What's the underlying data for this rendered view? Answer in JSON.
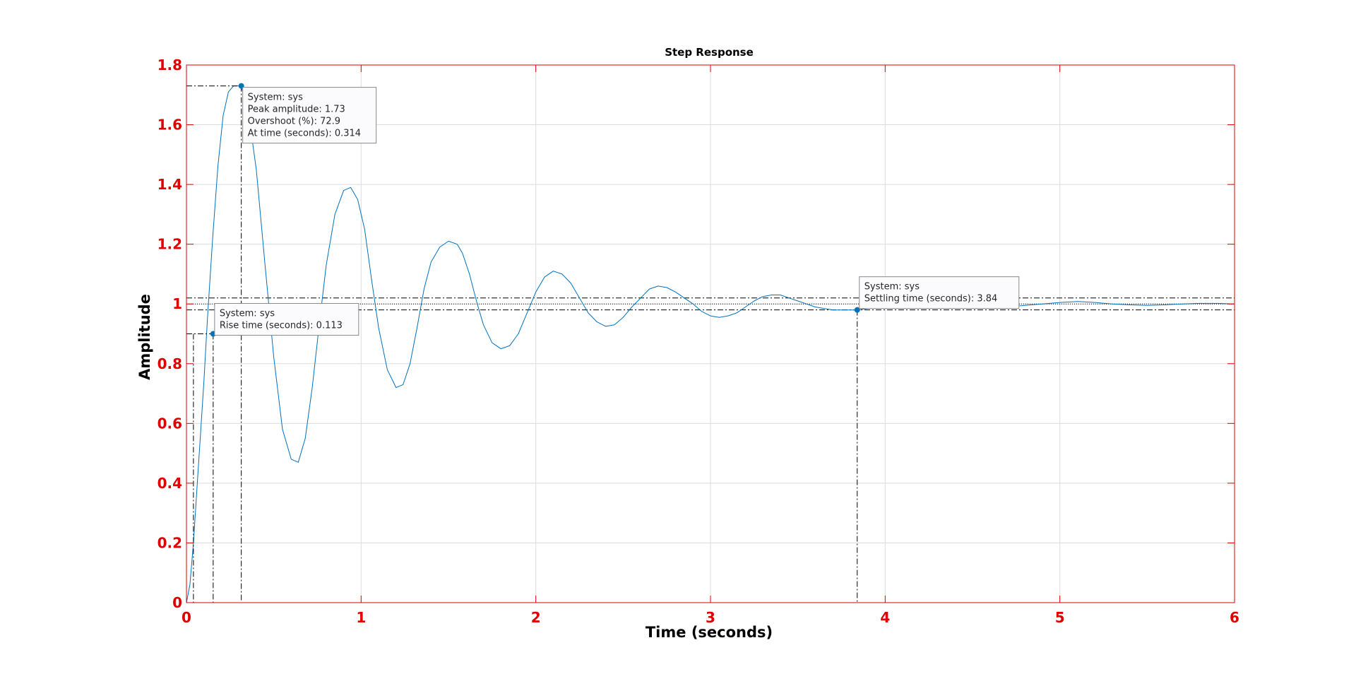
{
  "chart_data": {
    "type": "line",
    "title": "Step Response",
    "xlabel": "Time (seconds)",
    "ylabel": "Amplitude",
    "xlim": [
      0,
      6
    ],
    "ylim": [
      0,
      1.8
    ],
    "x_ticks": [
      "0",
      "1",
      "2",
      "3",
      "4",
      "5",
      "6"
    ],
    "y_ticks": [
      "0",
      "0.2",
      "0.4",
      "0.6",
      "0.8",
      "1",
      "1.2",
      "1.4",
      "1.6",
      "1.8"
    ],
    "grid": true,
    "colors": {
      "axes": "#e00000",
      "line": "#0072bd",
      "grid": "#dcdcdc",
      "guide": "#000000"
    },
    "series": [
      {
        "x": [
          0.0,
          0.02,
          0.04,
          0.06,
          0.08,
          0.1,
          0.12,
          0.15,
          0.18,
          0.21,
          0.24,
          0.27,
          0.314,
          0.36,
          0.4,
          0.45,
          0.5,
          0.55,
          0.6,
          0.64,
          0.68,
          0.72,
          0.76,
          0.8,
          0.85,
          0.9,
          0.94,
          0.98,
          1.02,
          1.06,
          1.1,
          1.15,
          1.2,
          1.24,
          1.28,
          1.32,
          1.36,
          1.4,
          1.45,
          1.5,
          1.55,
          1.58,
          1.62,
          1.66,
          1.7,
          1.75,
          1.8,
          1.85,
          1.9,
          1.95,
          2.0,
          2.05,
          2.1,
          2.15,
          2.2,
          2.25,
          2.3,
          2.35,
          2.4,
          2.45,
          2.5,
          2.55,
          2.6,
          2.65,
          2.7,
          2.75,
          2.8,
          2.85,
          2.9,
          2.95,
          3.0,
          3.05,
          3.1,
          3.15,
          3.2,
          3.25,
          3.3,
          3.35,
          3.4,
          3.45,
          3.5,
          3.55,
          3.6,
          3.65,
          3.7,
          3.75,
          3.84,
          3.9,
          3.95,
          4.0,
          4.1,
          4.2,
          4.3,
          4.4,
          4.5,
          4.6,
          4.7,
          4.8,
          4.9,
          5.0,
          5.1,
          5.2,
          5.3,
          5.4,
          5.5,
          5.6,
          5.7,
          5.8,
          5.9,
          6.0
        ],
        "values": [
          0.0,
          0.06,
          0.2,
          0.38,
          0.56,
          0.74,
          0.95,
          1.22,
          1.46,
          1.63,
          1.71,
          1.73,
          1.73,
          1.62,
          1.45,
          1.13,
          0.82,
          0.58,
          0.48,
          0.47,
          0.55,
          0.72,
          0.93,
          1.13,
          1.3,
          1.38,
          1.39,
          1.35,
          1.25,
          1.08,
          0.92,
          0.78,
          0.72,
          0.73,
          0.8,
          0.92,
          1.05,
          1.14,
          1.19,
          1.21,
          1.2,
          1.17,
          1.1,
          1.01,
          0.93,
          0.87,
          0.85,
          0.86,
          0.9,
          0.97,
          1.04,
          1.09,
          1.11,
          1.1,
          1.07,
          1.02,
          0.97,
          0.94,
          0.925,
          0.93,
          0.955,
          0.99,
          1.02,
          1.05,
          1.06,
          1.055,
          1.04,
          1.02,
          1.0,
          0.975,
          0.96,
          0.955,
          0.96,
          0.97,
          0.99,
          1.01,
          1.025,
          1.03,
          1.03,
          1.02,
          1.01,
          1.0,
          0.99,
          0.985,
          0.98,
          0.98,
          0.98,
          0.985,
          0.99,
          1.0,
          1.01,
          1.013,
          1.01,
          1.005,
          0.995,
          0.99,
          0.99,
          0.995,
          1.0,
          1.005,
          1.008,
          1.005,
          1.0,
          0.997,
          0.995,
          0.997,
          1.0,
          1.002,
          1.002,
          1.0
        ]
      }
    ],
    "reference_lines": {
      "steady_state": 1.0,
      "settling_band": [
        0.98,
        1.02
      ]
    },
    "annotations": [
      {
        "id": "rise",
        "x": 0.153,
        "y": 0.9,
        "start_x": 0.04,
        "lines": [
          "System: sys",
          "Rise time (seconds): 0.113"
        ]
      },
      {
        "id": "peak",
        "x": 0.314,
        "y": 1.73,
        "lines": [
          "System: sys",
          "Peak amplitude: 1.73",
          "Overshoot (%): 72.9",
          "At time (seconds): 0.314"
        ]
      },
      {
        "id": "settling",
        "x": 3.84,
        "y": 0.98,
        "lines": [
          "System: sys",
          "Settling time (seconds): 3.84"
        ]
      }
    ]
  }
}
